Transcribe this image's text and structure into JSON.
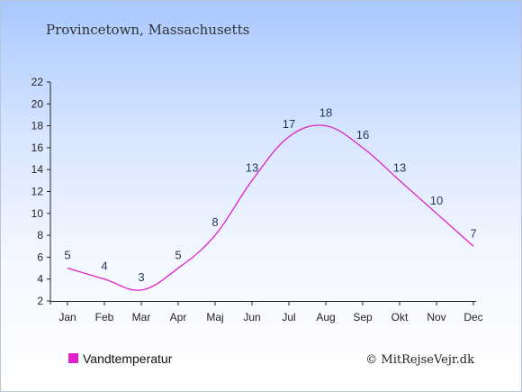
{
  "chart_data": {
    "type": "line",
    "title": "Provincetown, Massachusetts",
    "xlabel": "",
    "ylabel": "",
    "categories": [
      "Jan",
      "Feb",
      "Mar",
      "Apr",
      "Maj",
      "Jun",
      "Jul",
      "Aug",
      "Sep",
      "Okt",
      "Nov",
      "Dec"
    ],
    "series": [
      {
        "name": "Vandtemperatur",
        "values": [
          5,
          4,
          3,
          5,
          8,
          13,
          17,
          18,
          16,
          13,
          10,
          7
        ],
        "color": "#e020c8"
      }
    ],
    "ylim": [
      2,
      22
    ],
    "yticks": [
      2,
      4,
      6,
      8,
      10,
      12,
      14,
      16,
      18,
      20,
      22
    ],
    "grid": false,
    "legend_position": "bottom-left"
  },
  "credit": "© MitRejseVejr.dk"
}
